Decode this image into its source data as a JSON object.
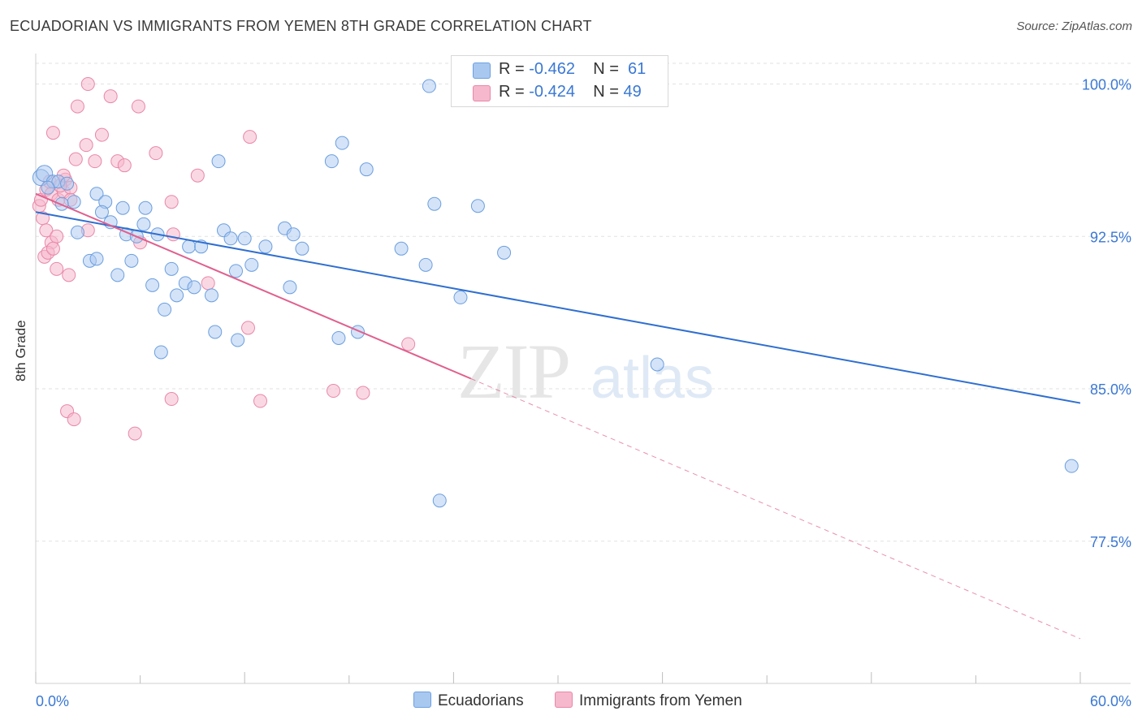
{
  "title": "ECUADORIAN VS IMMIGRANTS FROM YEMEN 8TH GRADE CORRELATION CHART",
  "source": "Source: ZipAtlas.com",
  "watermark": {
    "zip": "ZIP",
    "atlas": "atlas"
  },
  "legend": {
    "rows": [
      {
        "r_label": "R = ",
        "r_value": "-0.462",
        "n_label": "N = ",
        "n_value": "61",
        "color": "#a9c8f0"
      },
      {
        "r_label": "R = ",
        "r_value": "-0.424",
        "n_label": "N = ",
        "n_value": "49",
        "color": "#f6b8cc"
      }
    ]
  },
  "bottom_legend": {
    "series1": "Ecuadorians",
    "series2": "Immigrants from Yemen"
  },
  "colors": {
    "blue_fill": "#a9c8f0",
    "blue_stroke": "#6b9fe0",
    "blue_line": "#2f6fd0",
    "pink_fill": "#f6b8cc",
    "pink_stroke": "#e888a8",
    "pink_line": "#e0608e",
    "grid": "#e2e2e2",
    "tick_label": "#3a78d4"
  },
  "chart_data": {
    "type": "scatter",
    "title": "ECUADORIAN VS IMMIGRANTS FROM YEMEN 8TH GRADE CORRELATION CHART",
    "xlabel": "",
    "ylabel": "8th Grade",
    "xlim": [
      0,
      60
    ],
    "ylim": [
      70.5,
      101.5
    ],
    "x_tick_labels": [
      "0.0%",
      "60.0%"
    ],
    "y_ticks": [
      77.5,
      85.0,
      92.5,
      100.0
    ],
    "y_tick_labels": [
      "77.5%",
      "85.0%",
      "92.5%",
      "100.0%"
    ],
    "grid": true,
    "legend_position": "top-center",
    "series": [
      {
        "name": "Ecuadorians",
        "r": -0.462,
        "n": 61,
        "trend": {
          "x": [
            0,
            60
          ],
          "y": [
            93.7,
            84.3
          ]
        },
        "points": [
          [
            0.3,
            95.4
          ],
          [
            0.5,
            95.6
          ],
          [
            1.0,
            95.2
          ],
          [
            1.3,
            95.2
          ],
          [
            2.2,
            94.2
          ],
          [
            1.5,
            94.1
          ],
          [
            3.5,
            94.6
          ],
          [
            4.0,
            94.2
          ],
          [
            3.8,
            93.7
          ],
          [
            5.0,
            93.9
          ],
          [
            6.3,
            93.9
          ],
          [
            4.3,
            93.2
          ],
          [
            2.4,
            92.7
          ],
          [
            5.2,
            92.6
          ],
          [
            5.8,
            92.5
          ],
          [
            6.2,
            93.1
          ],
          [
            7.0,
            92.6
          ],
          [
            8.8,
            92.0
          ],
          [
            9.5,
            92.0
          ],
          [
            10.5,
            96.2
          ],
          [
            10.8,
            92.8
          ],
          [
            11.2,
            92.4
          ],
          [
            12.0,
            92.4
          ],
          [
            13.2,
            92.0
          ],
          [
            14.3,
            92.9
          ],
          [
            14.8,
            92.6
          ],
          [
            15.3,
            91.9
          ],
          [
            3.1,
            91.3
          ],
          [
            3.5,
            91.4
          ],
          [
            4.7,
            90.6
          ],
          [
            5.5,
            91.3
          ],
          [
            6.7,
            90.1
          ],
          [
            7.8,
            90.9
          ],
          [
            8.1,
            89.6
          ],
          [
            8.6,
            90.2
          ],
          [
            9.1,
            90.0
          ],
          [
            10.1,
            89.6
          ],
          [
            11.5,
            90.8
          ],
          [
            12.4,
            91.1
          ],
          [
            14.6,
            90.0
          ],
          [
            7.4,
            88.9
          ],
          [
            10.3,
            87.8
          ],
          [
            11.6,
            87.4
          ],
          [
            7.2,
            86.8
          ],
          [
            17.4,
            87.5
          ],
          [
            18.5,
            87.8
          ],
          [
            17.0,
            96.2
          ],
          [
            17.6,
            97.1
          ],
          [
            19.0,
            95.8
          ],
          [
            22.6,
            99.9
          ],
          [
            21.0,
            91.9
          ],
          [
            22.4,
            91.1
          ],
          [
            22.9,
            94.1
          ],
          [
            24.4,
            89.5
          ],
          [
            25.4,
            94.0
          ],
          [
            26.9,
            91.7
          ],
          [
            35.7,
            86.2
          ],
          [
            59.5,
            81.2
          ],
          [
            23.2,
            79.5
          ],
          [
            1.8,
            95.1
          ],
          [
            0.7,
            94.9
          ]
        ]
      },
      {
        "name": "Immigrants from Yemen",
        "r": -0.424,
        "n": 49,
        "trend": {
          "x": [
            0,
            25
          ],
          "y": [
            94.6,
            85.5
          ]
        },
        "trend_dashed": {
          "x": [
            25,
            60
          ],
          "y": [
            85.5,
            72.7
          ]
        },
        "points": [
          [
            0.2,
            94.0
          ],
          [
            0.3,
            94.3
          ],
          [
            0.6,
            94.8
          ],
          [
            0.9,
            94.6
          ],
          [
            1.3,
            94.3
          ],
          [
            1.6,
            94.7
          ],
          [
            1.7,
            95.3
          ],
          [
            2.0,
            94.9
          ],
          [
            0.4,
            93.4
          ],
          [
            0.6,
            92.8
          ],
          [
            0.9,
            92.2
          ],
          [
            1.2,
            92.5
          ],
          [
            0.5,
            91.5
          ],
          [
            0.7,
            91.7
          ],
          [
            1.0,
            91.9
          ],
          [
            1.2,
            90.9
          ],
          [
            1.9,
            90.6
          ],
          [
            1.0,
            97.6
          ],
          [
            2.4,
            98.9
          ],
          [
            3.0,
            100.0
          ],
          [
            4.3,
            99.4
          ],
          [
            5.9,
            98.9
          ],
          [
            2.9,
            97.0
          ],
          [
            3.8,
            97.5
          ],
          [
            2.3,
            96.3
          ],
          [
            3.4,
            96.2
          ],
          [
            4.7,
            96.2
          ],
          [
            5.1,
            96.0
          ],
          [
            6.9,
            96.6
          ],
          [
            9.3,
            95.5
          ],
          [
            7.8,
            94.2
          ],
          [
            3.0,
            92.8
          ],
          [
            6.0,
            92.2
          ],
          [
            7.9,
            92.6
          ],
          [
            9.9,
            90.2
          ],
          [
            12.3,
            97.4
          ],
          [
            12.2,
            88.0
          ],
          [
            21.4,
            87.2
          ],
          [
            7.8,
            84.5
          ],
          [
            12.9,
            84.4
          ],
          [
            17.1,
            84.9
          ],
          [
            18.8,
            84.8
          ],
          [
            1.8,
            83.9
          ],
          [
            2.2,
            83.5
          ],
          [
            5.7,
            82.8
          ],
          [
            0.8,
            95.2
          ],
          [
            1.4,
            95.0
          ],
          [
            2.0,
            94.3
          ],
          [
            1.6,
            95.5
          ]
        ]
      }
    ]
  }
}
